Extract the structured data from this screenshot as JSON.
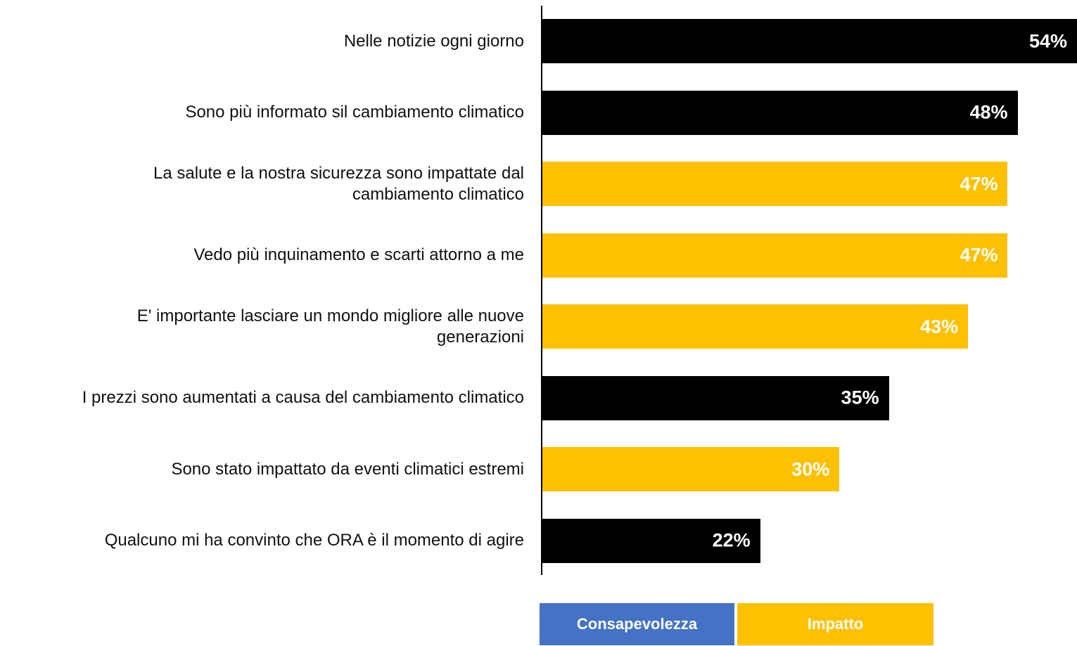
{
  "chart_data": {
    "type": "bar",
    "orientation": "horizontal",
    "categories": [
      "Nelle notizie ogni giorno",
      "Sono più informato sil cambiamento climatico",
      "La salute e la nostra sicurezza sono impattate dal\ncambiamento climatico",
      "Vedo più inquinamento e scarti attorno a me",
      "E' importante lasciare un mondo migliore alle nuove\ngenerazioni",
      "I prezzi sono aumentati a causa del cambiamento climatico",
      "Sono stato impattato da eventi climatici estremi",
      "Qualcuno mi ha convinto che ORA è il momento di agire"
    ],
    "values": [
      54,
      48,
      47,
      47,
      43,
      35,
      30,
      22
    ],
    "value_labels": [
      "54%",
      "48%",
      "47%",
      "47%",
      "43%",
      "35%",
      "30%",
      "22%"
    ],
    "colors": [
      "#000000",
      "#000000",
      "#ffc000",
      "#ffc000",
      "#ffc000",
      "#000000",
      "#ffc000",
      "#000000"
    ],
    "legend": [
      {
        "name": "Consapevolezza",
        "color": "#4472c4"
      },
      {
        "name": "Impatto",
        "color": "#ffc000"
      }
    ]
  }
}
